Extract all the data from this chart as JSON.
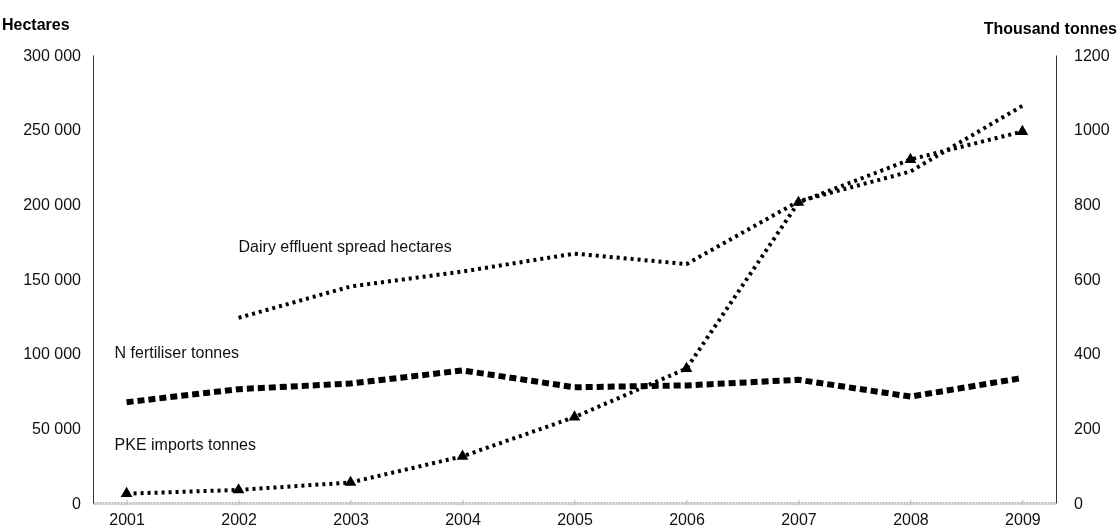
{
  "chart_data": {
    "type": "line",
    "ylabel": "Hectares",
    "y2label": "Thousand tonnes",
    "x": [
      2001,
      2002,
      2003,
      2004,
      2005,
      2006,
      2007,
      2008,
      2009
    ],
    "xlim": [
      2000.7,
      2009.3
    ],
    "xticks": [
      2001,
      2002,
      2003,
      2004,
      2005,
      2006,
      2007,
      2008,
      2009
    ],
    "ylim": [
      0,
      300000
    ],
    "yticks": [
      {
        "value": 0,
        "label": "0"
      },
      {
        "value": 50000,
        "label": "50 000"
      },
      {
        "value": 100000,
        "label": "100 000"
      },
      {
        "value": 150000,
        "label": "150 000"
      },
      {
        "value": 200000,
        "label": "200 000"
      },
      {
        "value": 250000,
        "label": "250 000"
      },
      {
        "value": 300000,
        "label": "300 000"
      }
    ],
    "y2lim": [
      0,
      1200
    ],
    "y2ticks": [
      0,
      200,
      400,
      600,
      800,
      1000,
      1200
    ],
    "grid": false,
    "legend": false,
    "series": [
      {
        "name": "Dairy effluent spread hectares",
        "color": "#000000",
        "line_style": "dotted",
        "marker": "none",
        "values": [
          null,
          124000,
          145000,
          155000,
          167000,
          160000,
          202000,
          222000,
          266000
        ]
      },
      {
        "name": "N fertiliser tonnes",
        "color": "#000000",
        "axis": "y2",
        "line_style": "dashed",
        "marker": "none",
        "values": [
          270,
          305,
          320,
          355,
          310,
          315,
          330,
          285,
          335
        ]
      },
      {
        "name": "PKE imports tonnes",
        "color": "#000000",
        "axis": "y2",
        "line_style": "dotted",
        "marker": "triangle",
        "values": [
          25,
          35,
          55,
          125,
          230,
          360,
          805,
          920,
          995
        ]
      }
    ]
  }
}
